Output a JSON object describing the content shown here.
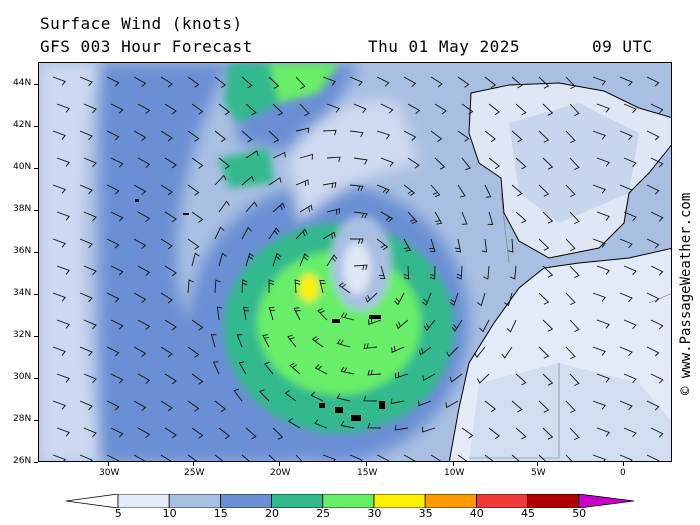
{
  "title": "Surface Wind (knots)",
  "subtitle": "GFS 003 Hour Forecast",
  "date": "Thu 01 May 2025",
  "time": "09 UTC",
  "credit": "© www.PassageWeather.com",
  "lat_labels": [
    "44N",
    "42N",
    "40N",
    "38N",
    "36N",
    "34N",
    "32N",
    "30N",
    "28N",
    "26N"
  ],
  "lon_labels": [
    "30W",
    "25W",
    "20W",
    "15W",
    "10W",
    "5W",
    "0"
  ],
  "legend": {
    "values": [
      "5",
      "10",
      "15",
      "20",
      "25",
      "30",
      "35",
      "40",
      "45",
      "50"
    ],
    "colors": [
      "#e4ebf8",
      "#a9bfe2",
      "#6a8fd4",
      "#30b98d",
      "#67ee67",
      "#fff000",
      "#ff9a00",
      "#f03a3a",
      "#b00000",
      "#c800c8"
    ]
  }
}
